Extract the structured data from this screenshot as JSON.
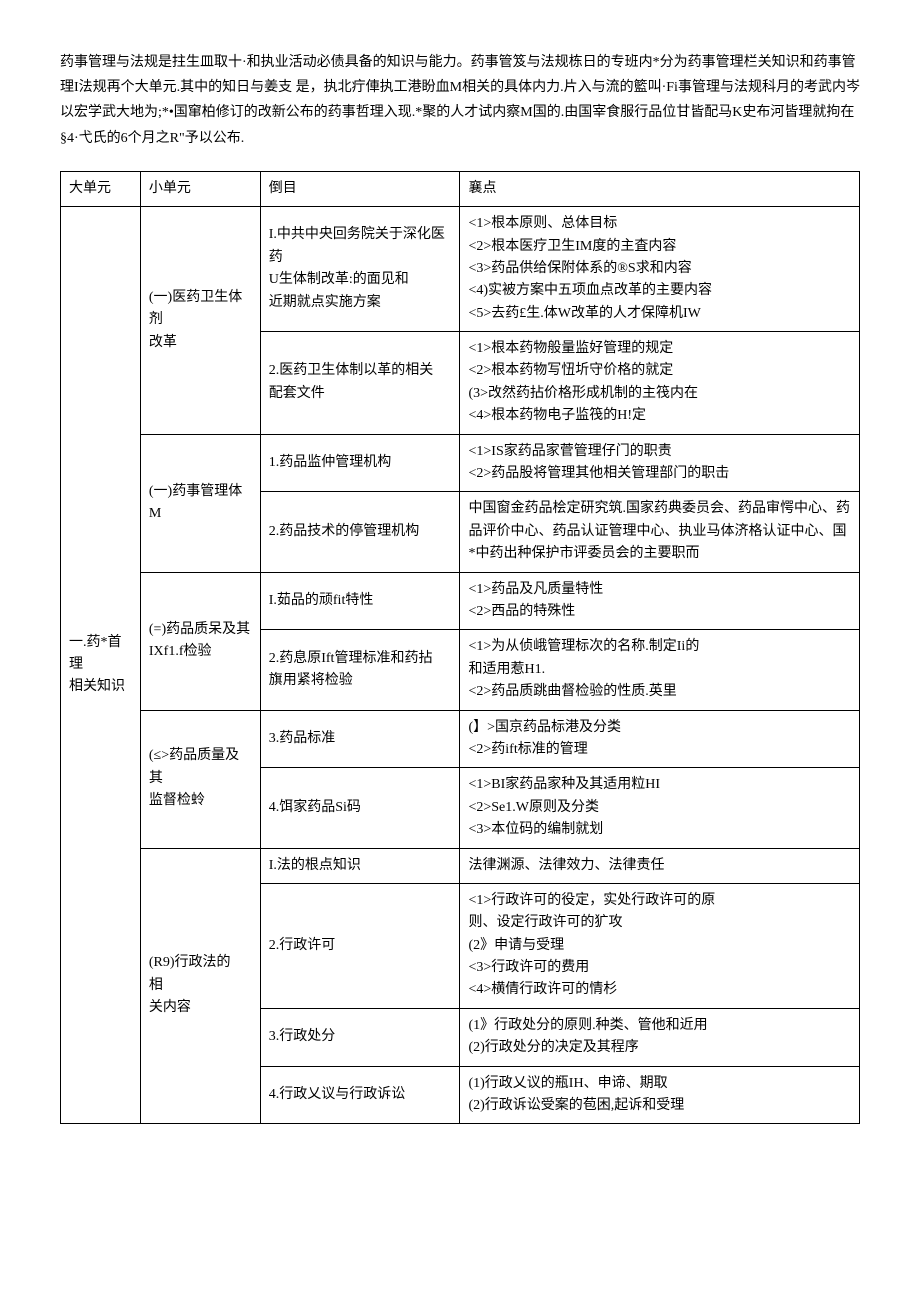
{
  "intro": "药事管理与法规是拄生皿取十·和执业活动必债具备的知识与能力。药事管笈与法规栋日的专班内*分为药事管理栏关知识和药事管理I法规再个大单元.其中的知日与姜支 是，执北疔俥执工港盼血M相关的具体内力.片入与流的籃叫·Fi事管理与法规科月的考武内岑以宏学武大地为;*•国窜柏修订的改新公布的药事哲理入现.*聚的人才试内察M国的.由国宰食服行品位甘皆配马K史布河皆理就拘在§4·弋氏的6个月之R\"予以公布.",
  "headers": {
    "col1": "大单元",
    "col2": "小单元",
    "col3": "倒目",
    "col4": "襄点"
  },
  "rows": [
    {
      "l1": "一.药*首理\n相关知识",
      "l2": "(一)医药卫生体剂\n改革",
      "l3": "I.中共中央回务院关于深化医药\nU生体制改革:的面见和\n近期就点实施方案",
      "l4": "<1>根本原则、总体目标\n<2>根本医疗卫生IM度的主査内容\n<3>药品供给保附体系的®S求和内容\n<4)实被方案中五项血点改革的主要内容\n<5>去药£生.体W改革的人才保障机IW"
    },
    {
      "l3": "2.医药卫生体制以革的相关\n配套文件",
      "l4": "<1>根本药物般量监好管理的规定\n<2>根本药物写忸圻守价格的就定\n(3>改然药拈价格形成机制的主筏内在\n<4>根本药物电子监筏的H!定"
    },
    {
      "l2": "(一)药事管理体M",
      "l3": "1.药品监仲管理机构",
      "l4": "<1>IS家药品家菅管理仔门的职责\n<2>药品股将管理其他相关管理部门的职击"
    },
    {
      "l3": "2.药品技术的停管理机构",
      "l4": "中国窗金药品桧定研究筑.国家药典委员会、药品审愕中心、药品评价中心、药品认证管理中心、执业马体济格认证中心、国*中药出种保护市评委员会的主要职而"
    },
    {
      "l2": "(=)药品质呆及其\nIXf1.f检验",
      "l3": "I.茹品的顽fit特性",
      "l4": "<1>药品及凡质量特性\n<2>西品的特殊性"
    },
    {
      "l3": "2.药息原Ift管理标准和药拈\n旗用紧将检验",
      "l4": "<1>为从侦峨管理标次的名称.制定Ii的\n和适用惹H1.\n<2>药品质跳曲督检验的性质.英里"
    },
    {
      "l2": "(≤>药品质量及其\n监督检蛉",
      "l3": "3.药品标准",
      "l4": "(】>国京药品标港及分类\n<2>药ift标准的管理"
    },
    {
      "l3": "4.饵家药品Si码",
      "l4": "<1>BI家药品家种及其适用粒HI\n<2>Se1.W原则及分类\n<3>本位码的编制就划"
    },
    {
      "l2": "(R9)行政法的\n相\n关内容",
      "l3": "I.法的根点知识",
      "l4": "法律渊源、法律效力、法律责任"
    },
    {
      "l3": "2.行政许可",
      "l4": "<1>行政许可的役定，实处行政许可的原\n则、设定行政许可的犷攻\n(2》申请与受理\n<3>行政许可的费用\n<4>横倩行政许可的情杉"
    },
    {
      "l3": "3.行政处分",
      "l4": "(1》行政处分的原则.种类、管他和近用\n(2)行政处分的决定及其程序"
    },
    {
      "l3": "4.行政乂议与行政诉讼",
      "l4": "(1)行政乂议的瓶IH、申谛、期取\n(2)行政诉讼受案的苞困,起诉和受理"
    }
  ]
}
